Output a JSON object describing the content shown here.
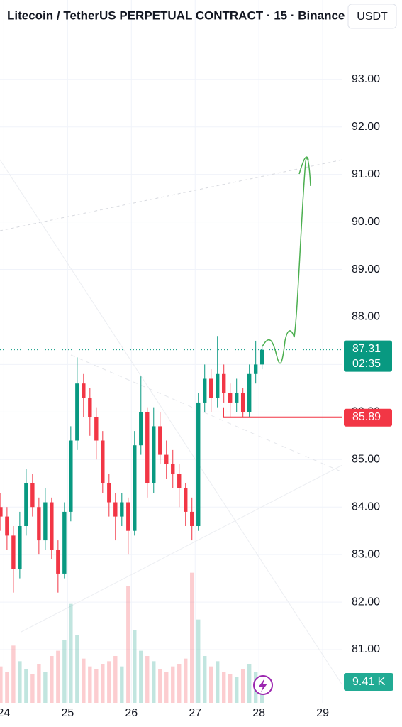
{
  "chart_data": {
    "type": "candlestick",
    "title": "Litecoin / TetherUS PERPETUAL CONTRACT · 15 · Binance",
    "currency": "USDT",
    "x": [
      23.95,
      24.05,
      24.15,
      24.25,
      24.35,
      24.45,
      24.55,
      24.65,
      24.75,
      24.85,
      24.95,
      25.05,
      25.15,
      25.25,
      25.35,
      25.45,
      25.55,
      25.65,
      25.75,
      25.85,
      25.95,
      26.05,
      26.15,
      26.25,
      26.35,
      26.45,
      26.55,
      26.65,
      26.75,
      26.85,
      26.95,
      27.05,
      27.15,
      27.25,
      27.35,
      27.45,
      27.55,
      27.65,
      27.75,
      27.85,
      27.95,
      28.05
    ],
    "open": [
      84.0,
      83.8,
      83.4,
      82.7,
      83.6,
      84.5,
      84.0,
      83.3,
      84.1,
      83.1,
      82.6,
      83.9,
      85.4,
      86.6,
      86.3,
      85.9,
      85.4,
      84.5,
      84.1,
      83.8,
      84.1,
      83.5,
      85.3,
      86.0,
      84.5,
      85.7,
      85.1,
      84.9,
      84.7,
      84.4,
      83.9,
      83.6,
      86.2,
      86.7,
      86.3,
      86.8,
      86.4,
      86.2,
      86.4,
      86.0,
      86.8,
      87.0
    ],
    "high": [
      84.3,
      84.0,
      83.6,
      83.9,
      84.8,
      84.7,
      84.2,
      84.4,
      84.2,
      83.3,
      84.1,
      85.7,
      87.15,
      86.8,
      86.5,
      86.1,
      85.6,
      84.7,
      84.3,
      84.3,
      84.2,
      85.6,
      86.75,
      86.1,
      86.1,
      86.0,
      85.4,
      85.2,
      84.9,
      84.5,
      84.2,
      86.4,
      87.0,
      86.9,
      87.6,
      87.0,
      86.6,
      86.7,
      86.5,
      87.0,
      87.5,
      87.4
    ],
    "low": [
      83.5,
      83.1,
      82.2,
      82.5,
      83.4,
      83.8,
      83.0,
      83.1,
      82.9,
      82.2,
      82.5,
      83.7,
      85.2,
      85.9,
      85.5,
      85.0,
      84.3,
      83.8,
      83.3,
      83.6,
      83.0,
      83.4,
      85.1,
      84.2,
      84.3,
      84.9,
      84.6,
      84.4,
      84.0,
      83.6,
      83.3,
      83.5,
      86.0,
      86.0,
      86.1,
      86.2,
      85.9,
      86.0,
      85.9,
      85.9,
      86.6,
      86.9
    ],
    "close": [
      83.8,
      83.4,
      82.7,
      83.6,
      84.5,
      84.0,
      83.3,
      84.1,
      83.1,
      82.6,
      83.9,
      85.4,
      86.6,
      86.3,
      85.9,
      85.4,
      84.5,
      84.1,
      83.8,
      84.1,
      83.5,
      85.3,
      86.0,
      84.5,
      85.7,
      85.1,
      84.9,
      84.7,
      84.4,
      83.9,
      83.6,
      86.2,
      86.7,
      86.3,
      86.8,
      86.4,
      86.2,
      86.4,
      86.0,
      86.8,
      87.0,
      87.31
    ],
    "volume": [
      14,
      12,
      22,
      16,
      13,
      11,
      15,
      12,
      18,
      20,
      24,
      38,
      26,
      17,
      14,
      13,
      15,
      16,
      18,
      14,
      45,
      28,
      20,
      18,
      16,
      13,
      12,
      14,
      15,
      17,
      50,
      32,
      18,
      14,
      16,
      12,
      11,
      10,
      13,
      15,
      12,
      9.41
    ],
    "up_color": "#089981",
    "down_color": "#f23645",
    "ylim": [
      79.88,
      94.67
    ],
    "yticks": [
      {
        "value": 81,
        "label": "81.00"
      },
      {
        "value": 82,
        "label": "82.00"
      },
      {
        "value": 83,
        "label": "83.00"
      },
      {
        "value": 84,
        "label": "84.00"
      },
      {
        "value": 85,
        "label": "85.00"
      },
      {
        "value": 86,
        "label": "86.00"
      },
      {
        "value": 87,
        "label": "87.00"
      },
      {
        "value": 88,
        "label": "88.00"
      },
      {
        "value": 89,
        "label": "89.00"
      },
      {
        "value": 90,
        "label": "90.00"
      },
      {
        "value": 91,
        "label": "91.00"
      },
      {
        "value": 92,
        "label": "92.00"
      },
      {
        "value": 93,
        "label": "93.00"
      }
    ],
    "xlim": [
      23.94,
      29.31
    ],
    "xticks": [
      24,
      25,
      26,
      27,
      28,
      29
    ],
    "vlim": [
      0,
      60
    ],
    "grid": true,
    "last_price": 87.31,
    "countdown": "02:35",
    "line_price": 85.89,
    "line_color": "#f23645",
    "volume_label": "9.41 K"
  }
}
